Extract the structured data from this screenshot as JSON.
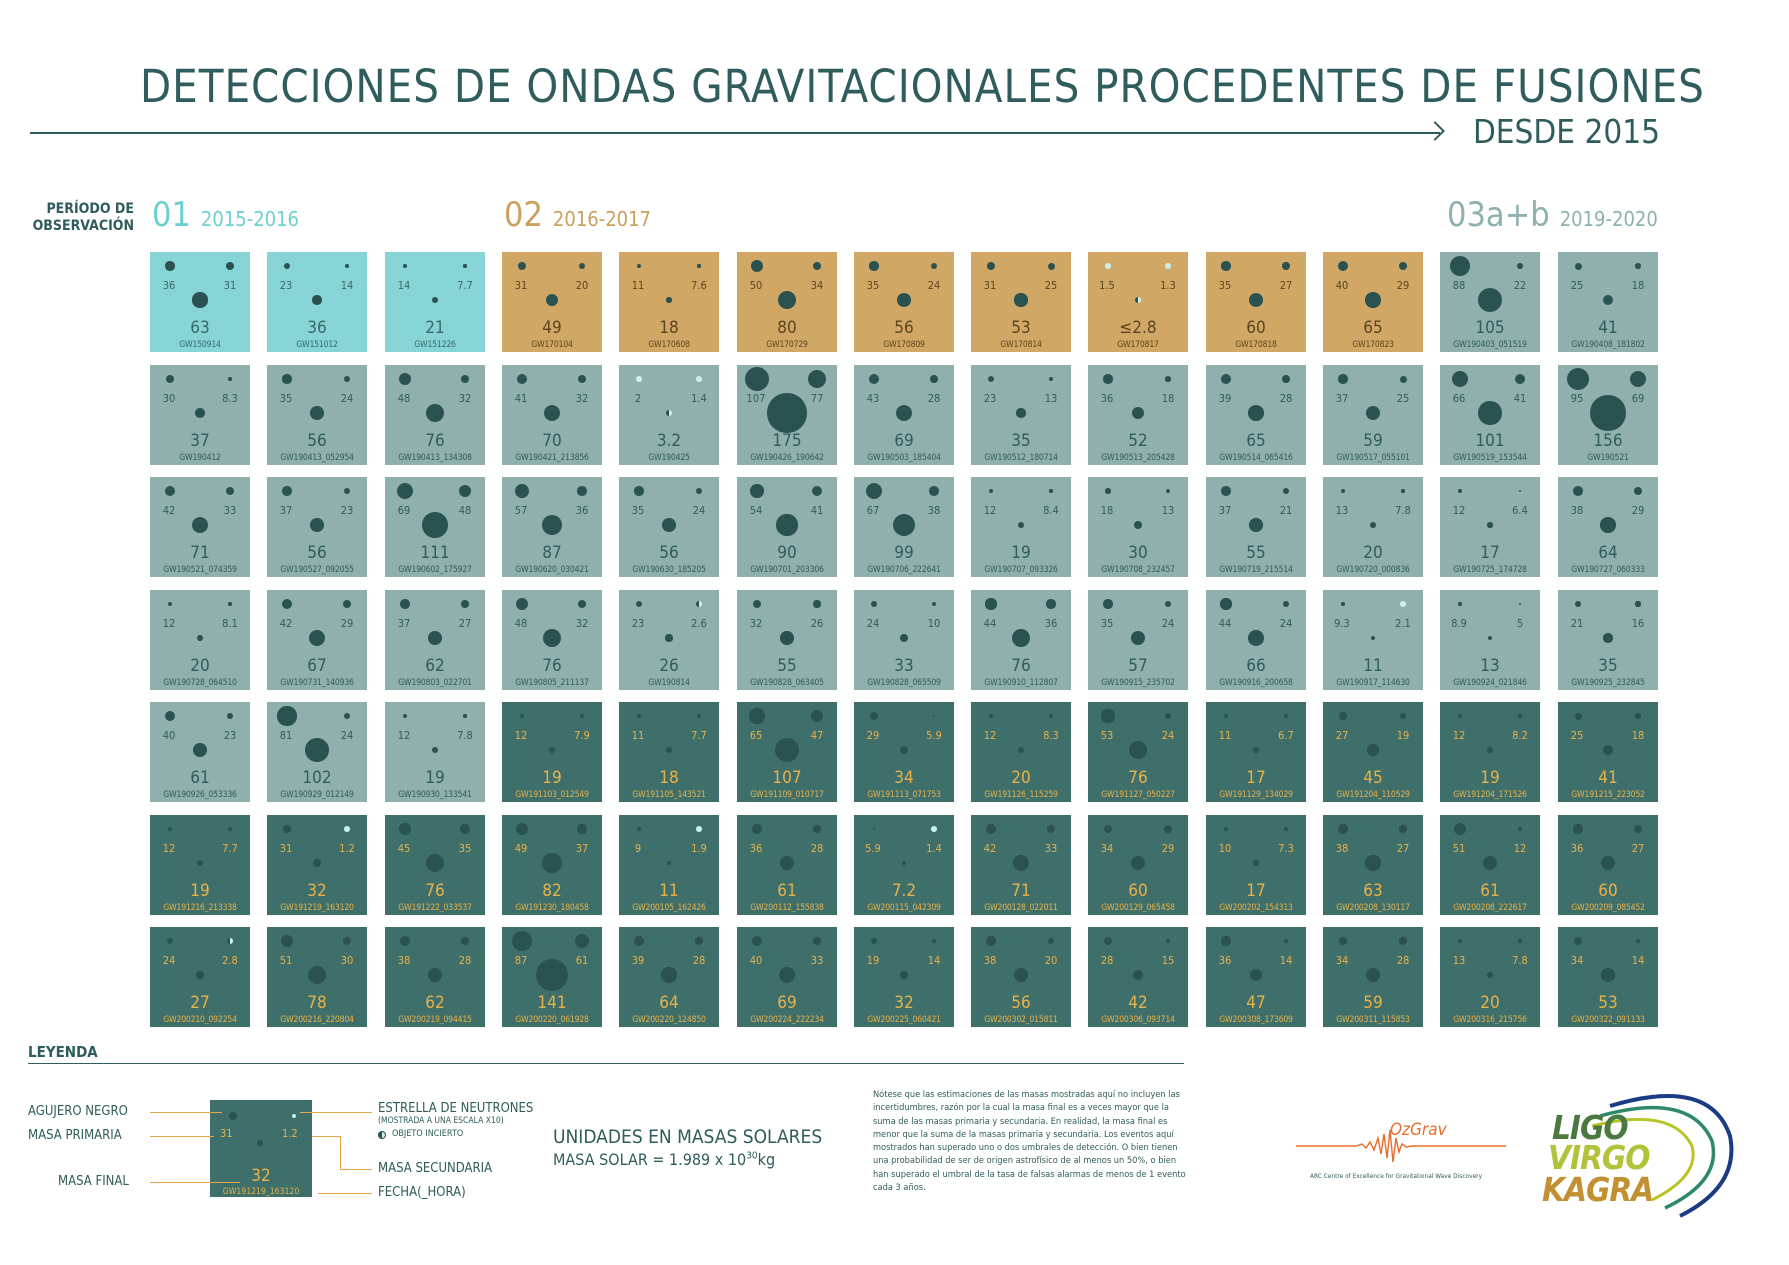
{
  "header": {
    "title": "DETECCIONES DE ONDAS GRAVITACIONALES PROCEDENTES DE FUSIONES",
    "subtitle": "DESDE 2015"
  },
  "period_label": "PERÍODO DE OBSERVACIÓN",
  "periods": [
    {
      "num": "01",
      "years": "2015-2016",
      "color": "#6dd0d0"
    },
    {
      "num": "02",
      "years": "2016-2017",
      "color": "#cba05f"
    },
    {
      "num": "03a+b",
      "years": "2019-2020",
      "color": "#8fb0b0"
    }
  ],
  "colors": {
    "o1_tile": "#86d4d5",
    "o2_tile": "#d0a765",
    "o3a_tile": "#8fb0ad",
    "o3b_tile": "#3f6f6b",
    "black_hole": "#2a5250",
    "neutron_star": "#c8f0ee",
    "o3b_text": "#e8b24a"
  },
  "events": [
    {
      "name": "GW150914",
      "m1": "36",
      "m2": "31",
      "mf": "63",
      "t1": "bh",
      "t2": "bh",
      "group": "o1"
    },
    {
      "name": "GW151012",
      "m1": "23",
      "m2": "14",
      "mf": "36",
      "t1": "bh",
      "t2": "bh",
      "group": "o1"
    },
    {
      "name": "GW151226",
      "m1": "14",
      "m2": "7.7",
      "mf": "21",
      "t1": "bh",
      "t2": "bh",
      "group": "o1"
    },
    {
      "name": "GW170104",
      "m1": "31",
      "m2": "20",
      "mf": "49",
      "t1": "bh",
      "t2": "bh",
      "group": "o2"
    },
    {
      "name": "GW170608",
      "m1": "11",
      "m2": "7.6",
      "mf": "18",
      "t1": "bh",
      "t2": "bh",
      "group": "o2"
    },
    {
      "name": "GW170729",
      "m1": "50",
      "m2": "34",
      "mf": "80",
      "t1": "bh",
      "t2": "bh",
      "group": "o2"
    },
    {
      "name": "GW170809",
      "m1": "35",
      "m2": "24",
      "mf": "56",
      "t1": "bh",
      "t2": "bh",
      "group": "o2"
    },
    {
      "name": "GW170814",
      "m1": "31",
      "m2": "25",
      "mf": "53",
      "t1": "bh",
      "t2": "bh",
      "group": "o2"
    },
    {
      "name": "GW170817",
      "m1": "1.5",
      "m2": "1.3",
      "mf": "≤2.8",
      "t1": "ns",
      "t2": "ns",
      "tf": "un",
      "group": "o2"
    },
    {
      "name": "GW170818",
      "m1": "35",
      "m2": "27",
      "mf": "60",
      "t1": "bh",
      "t2": "bh",
      "group": "o2"
    },
    {
      "name": "GW170823",
      "m1": "40",
      "m2": "29",
      "mf": "65",
      "t1": "bh",
      "t2": "bh",
      "group": "o2"
    },
    {
      "name": "GW190403_051519",
      "m1": "88",
      "m2": "22",
      "mf": "105",
      "t1": "bh",
      "t2": "bh",
      "group": "o3a"
    },
    {
      "name": "GW190408_181802",
      "m1": "25",
      "m2": "18",
      "mf": "41",
      "t1": "bh",
      "t2": "bh",
      "group": "o3a"
    },
    {
      "name": "GW190412",
      "m1": "30",
      "m2": "8.3",
      "mf": "37",
      "t1": "bh",
      "t2": "bh",
      "group": "o3a"
    },
    {
      "name": "GW190413_052954",
      "m1": "35",
      "m2": "24",
      "mf": "56",
      "t1": "bh",
      "t2": "bh",
      "group": "o3a"
    },
    {
      "name": "GW190413_134308",
      "m1": "48",
      "m2": "32",
      "mf": "76",
      "t1": "bh",
      "t2": "bh",
      "group": "o3a"
    },
    {
      "name": "GW190421_213856",
      "m1": "41",
      "m2": "32",
      "mf": "70",
      "t1": "bh",
      "t2": "bh",
      "group": "o3a"
    },
    {
      "name": "GW190425",
      "m1": "2",
      "m2": "1.4",
      "mf": "3.2",
      "t1": "ns",
      "t2": "ns",
      "tf": "un",
      "group": "o3a"
    },
    {
      "name": "GW190426_190642",
      "m1": "107",
      "m2": "77",
      "mf": "175",
      "t1": "bh",
      "t2": "bh",
      "group": "o3a"
    },
    {
      "name": "GW190503_185404",
      "m1": "43",
      "m2": "28",
      "mf": "69",
      "t1": "bh",
      "t2": "bh",
      "group": "o3a"
    },
    {
      "name": "GW190512_180714",
      "m1": "23",
      "m2": "13",
      "mf": "35",
      "t1": "bh",
      "t2": "bh",
      "group": "o3a"
    },
    {
      "name": "GW190513_205428",
      "m1": "36",
      "m2": "18",
      "mf": "52",
      "t1": "bh",
      "t2": "bh",
      "group": "o3a"
    },
    {
      "name": "GW190514_065416",
      "m1": "39",
      "m2": "28",
      "mf": "65",
      "t1": "bh",
      "t2": "bh",
      "group": "o3a"
    },
    {
      "name": "GW190517_055101",
      "m1": "37",
      "m2": "25",
      "mf": "59",
      "t1": "bh",
      "t2": "bh",
      "group": "o3a"
    },
    {
      "name": "GW190519_153544",
      "m1": "66",
      "m2": "41",
      "mf": "101",
      "t1": "bh",
      "t2": "bh",
      "group": "o3a"
    },
    {
      "name": "GW190521",
      "m1": "95",
      "m2": "69",
      "mf": "156",
      "t1": "bh",
      "t2": "bh",
      "group": "o3a"
    },
    {
      "name": "GW190521_074359",
      "m1": "42",
      "m2": "33",
      "mf": "71",
      "t1": "bh",
      "t2": "bh",
      "group": "o3a"
    },
    {
      "name": "GW190527_092055",
      "m1": "37",
      "m2": "23",
      "mf": "56",
      "t1": "bh",
      "t2": "bh",
      "group": "o3a"
    },
    {
      "name": "GW190602_175927",
      "m1": "69",
      "m2": "48",
      "mf": "111",
      "t1": "bh",
      "t2": "bh",
      "group": "o3a"
    },
    {
      "name": "GW190620_030421",
      "m1": "57",
      "m2": "36",
      "mf": "87",
      "t1": "bh",
      "t2": "bh",
      "group": "o3a"
    },
    {
      "name": "GW190630_185205",
      "m1": "35",
      "m2": "24",
      "mf": "56",
      "t1": "bh",
      "t2": "bh",
      "group": "o3a"
    },
    {
      "name": "GW190701_203306",
      "m1": "54",
      "m2": "41",
      "mf": "90",
      "t1": "bh",
      "t2": "bh",
      "group": "o3a"
    },
    {
      "name": "GW190706_222641",
      "m1": "67",
      "m2": "38",
      "mf": "99",
      "t1": "bh",
      "t2": "bh",
      "group": "o3a"
    },
    {
      "name": "GW190707_093326",
      "m1": "12",
      "m2": "8.4",
      "mf": "19",
      "t1": "bh",
      "t2": "bh",
      "group": "o3a"
    },
    {
      "name": "GW190708_232457",
      "m1": "18",
      "m2": "13",
      "mf": "30",
      "t1": "bh",
      "t2": "bh",
      "group": "o3a"
    },
    {
      "name": "GW190719_215514",
      "m1": "37",
      "m2": "21",
      "mf": "55",
      "t1": "bh",
      "t2": "bh",
      "group": "o3a"
    },
    {
      "name": "GW190720_000836",
      "m1": "13",
      "m2": "7.8",
      "mf": "20",
      "t1": "bh",
      "t2": "bh",
      "group": "o3a"
    },
    {
      "name": "GW190725_174728",
      "m1": "12",
      "m2": "6.4",
      "mf": "17",
      "t1": "bh",
      "t2": "bh",
      "group": "o3a"
    },
    {
      "name": "GW190727_060333",
      "m1": "38",
      "m2": "29",
      "mf": "64",
      "t1": "bh",
      "t2": "bh",
      "group": "o3a"
    },
    {
      "name": "GW190728_064510",
      "m1": "12",
      "m2": "8.1",
      "mf": "20",
      "t1": "bh",
      "t2": "bh",
      "group": "o3a"
    },
    {
      "name": "GW190731_140936",
      "m1": "42",
      "m2": "29",
      "mf": "67",
      "t1": "bh",
      "t2": "bh",
      "group": "o3a"
    },
    {
      "name": "GW190803_022701",
      "m1": "37",
      "m2": "27",
      "mf": "62",
      "t1": "bh",
      "t2": "bh",
      "group": "o3a"
    },
    {
      "name": "GW190805_211137",
      "m1": "48",
      "m2": "32",
      "mf": "76",
      "t1": "bh",
      "t2": "bh",
      "group": "o3a"
    },
    {
      "name": "GW190814",
      "m1": "23",
      "m2": "2.6",
      "mf": "26",
      "t1": "bh",
      "t2": "un",
      "group": "o3a"
    },
    {
      "name": "GW190828_063405",
      "m1": "32",
      "m2": "26",
      "mf": "55",
      "t1": "bh",
      "t2": "bh",
      "group": "o3a"
    },
    {
      "name": "GW190828_065509",
      "m1": "24",
      "m2": "10",
      "mf": "33",
      "t1": "bh",
      "t2": "bh",
      "group": "o3a"
    },
    {
      "name": "GW190910_112807",
      "m1": "44",
      "m2": "36",
      "mf": "76",
      "t1": "bh",
      "t2": "bh",
      "group": "o3a"
    },
    {
      "name": "GW190915_235702",
      "m1": "35",
      "m2": "24",
      "mf": "57",
      "t1": "bh",
      "t2": "bh",
      "group": "o3a"
    },
    {
      "name": "GW190916_200658",
      "m1": "44",
      "m2": "24",
      "mf": "66",
      "t1": "bh",
      "t2": "bh",
      "group": "o3a"
    },
    {
      "name": "GW190917_114630",
      "m1": "9.3",
      "m2": "2.1",
      "mf": "11",
      "t1": "bh",
      "t2": "ns",
      "group": "o3a"
    },
    {
      "name": "GW190924_021846",
      "m1": "8.9",
      "m2": "5",
      "mf": "13",
      "t1": "bh",
      "t2": "bh",
      "group": "o3a"
    },
    {
      "name": "GW190925_232845",
      "m1": "21",
      "m2": "16",
      "mf": "35",
      "t1": "bh",
      "t2": "bh",
      "group": "o3a"
    },
    {
      "name": "GW190926_053336",
      "m1": "40",
      "m2": "23",
      "mf": "61",
      "t1": "bh",
      "t2": "bh",
      "group": "o3a"
    },
    {
      "name": "GW190929_012149",
      "m1": "81",
      "m2": "24",
      "mf": "102",
      "t1": "bh",
      "t2": "bh",
      "group": "o3a"
    },
    {
      "name": "GW190930_133541",
      "m1": "12",
      "m2": "7.8",
      "mf": "19",
      "t1": "bh",
      "t2": "bh",
      "group": "o3a"
    },
    {
      "name": "GW191103_012549",
      "m1": "12",
      "m2": "7.9",
      "mf": "19",
      "t1": "bh",
      "t2": "bh",
      "group": "o3b"
    },
    {
      "name": "GW191105_143521",
      "m1": "11",
      "m2": "7.7",
      "mf": "18",
      "t1": "bh",
      "t2": "bh",
      "group": "o3b"
    },
    {
      "name": "GW191109_010717",
      "m1": "65",
      "m2": "47",
      "mf": "107",
      "t1": "bh",
      "t2": "bh",
      "group": "o3b"
    },
    {
      "name": "GW191113_071753",
      "m1": "29",
      "m2": "5.9",
      "mf": "34",
      "t1": "bh",
      "t2": "bh",
      "group": "o3b"
    },
    {
      "name": "GW191126_115259",
      "m1": "12",
      "m2": "8.3",
      "mf": "20",
      "t1": "bh",
      "t2": "bh",
      "group": "o3b"
    },
    {
      "name": "GW191127_050227",
      "m1": "53",
      "m2": "24",
      "mf": "76",
      "t1": "bh",
      "t2": "bh",
      "group": "o3b"
    },
    {
      "name": "GW191129_134029",
      "m1": "11",
      "m2": "6.7",
      "mf": "17",
      "t1": "bh",
      "t2": "bh",
      "group": "o3b"
    },
    {
      "name": "GW191204_110529",
      "m1": "27",
      "m2": "19",
      "mf": "45",
      "t1": "bh",
      "t2": "bh",
      "group": "o3b"
    },
    {
      "name": "GW191204_171526",
      "m1": "12",
      "m2": "8.2",
      "mf": "19",
      "t1": "bh",
      "t2": "bh",
      "group": "o3b"
    },
    {
      "name": "GW191215_223052",
      "m1": "25",
      "m2": "18",
      "mf": "41",
      "t1": "bh",
      "t2": "bh",
      "group": "o3b"
    },
    {
      "name": "GW191216_213338",
      "m1": "12",
      "m2": "7.7",
      "mf": "19",
      "t1": "bh",
      "t2": "bh",
      "group": "o3b"
    },
    {
      "name": "GW191219_163120",
      "m1": "31",
      "m2": "1.2",
      "mf": "32",
      "t1": "bh",
      "t2": "ns",
      "group": "o3b"
    },
    {
      "name": "GW191222_033537",
      "m1": "45",
      "m2": "35",
      "mf": "76",
      "t1": "bh",
      "t2": "bh",
      "group": "o3b"
    },
    {
      "name": "GW191230_180458",
      "m1": "49",
      "m2": "37",
      "mf": "82",
      "t1": "bh",
      "t2": "bh",
      "group": "o3b"
    },
    {
      "name": "GW200105_162426",
      "m1": "9",
      "m2": "1.9",
      "mf": "11",
      "t1": "bh",
      "t2": "ns",
      "group": "o3b"
    },
    {
      "name": "GW200112_155838",
      "m1": "36",
      "m2": "28",
      "mf": "61",
      "t1": "bh",
      "t2": "bh",
      "group": "o3b"
    },
    {
      "name": "GW200115_042309",
      "m1": "5.9",
      "m2": "1.4",
      "mf": "7.2",
      "t1": "bh",
      "t2": "ns",
      "group": "o3b"
    },
    {
      "name": "GW200128_022011",
      "m1": "42",
      "m2": "33",
      "mf": "71",
      "t1": "bh",
      "t2": "bh",
      "group": "o3b"
    },
    {
      "name": "GW200129_065458",
      "m1": "34",
      "m2": "29",
      "mf": "60",
      "t1": "bh",
      "t2": "bh",
      "group": "o3b"
    },
    {
      "name": "GW200202_154313",
      "m1": "10",
      "m2": "7.3",
      "mf": "17",
      "t1": "bh",
      "t2": "bh",
      "group": "o3b"
    },
    {
      "name": "GW200208_130117",
      "m1": "38",
      "m2": "27",
      "mf": "63",
      "t1": "bh",
      "t2": "bh",
      "group": "o3b"
    },
    {
      "name": "GW200208_222617",
      "m1": "51",
      "m2": "12",
      "mf": "61",
      "t1": "bh",
      "t2": "bh",
      "group": "o3b"
    },
    {
      "name": "GW200209_085452",
      "m1": "36",
      "m2": "27",
      "mf": "60",
      "t1": "bh",
      "t2": "bh",
      "group": "o3b"
    },
    {
      "name": "GW200210_092254",
      "m1": "24",
      "m2": "2.8",
      "mf": "27",
      "t1": "bh",
      "t2": "un",
      "group": "o3b"
    },
    {
      "name": "GW200216_220804",
      "m1": "51",
      "m2": "30",
      "mf": "78",
      "t1": "bh",
      "t2": "bh",
      "group": "o3b"
    },
    {
      "name": "GW200219_094415",
      "m1": "38",
      "m2": "28",
      "mf": "62",
      "t1": "bh",
      "t2": "bh",
      "group": "o3b"
    },
    {
      "name": "GW200220_061928",
      "m1": "87",
      "m2": "61",
      "mf": "141",
      "t1": "bh",
      "t2": "bh",
      "group": "o3b"
    },
    {
      "name": "GW200220_124850",
      "m1": "39",
      "m2": "28",
      "mf": "64",
      "t1": "bh",
      "t2": "bh",
      "group": "o3b"
    },
    {
      "name": "GW200224_222234",
      "m1": "40",
      "m2": "33",
      "mf": "69",
      "t1": "bh",
      "t2": "bh",
      "group": "o3b"
    },
    {
      "name": "GW200225_060421",
      "m1": "19",
      "m2": "14",
      "mf": "32",
      "t1": "bh",
      "t2": "bh",
      "group": "o3b"
    },
    {
      "name": "GW200302_015811",
      "m1": "38",
      "m2": "20",
      "mf": "56",
      "t1": "bh",
      "t2": "bh",
      "group": "o3b"
    },
    {
      "name": "GW200306_093714",
      "m1": "28",
      "m2": "15",
      "mf": "42",
      "t1": "bh",
      "t2": "bh",
      "group": "o3b"
    },
    {
      "name": "GW200308_173609",
      "m1": "36",
      "m2": "14",
      "mf": "47",
      "t1": "bh",
      "t2": "bh",
      "group": "o3b"
    },
    {
      "name": "GW200311_115853",
      "m1": "34",
      "m2": "28",
      "mf": "59",
      "t1": "bh",
      "t2": "bh",
      "group": "o3b"
    },
    {
      "name": "GW200316_215756",
      "m1": "13",
      "m2": "7.8",
      "mf": "20",
      "t1": "bh",
      "t2": "bh",
      "group": "o3b"
    },
    {
      "name": "GW200322_091133",
      "m1": "34",
      "m2": "14",
      "mf": "53",
      "t1": "bh",
      "t2": "bh",
      "group": "o3b"
    }
  ],
  "legend": {
    "title": "LEYENDA",
    "black_hole": "AGUJERO NEGRO",
    "primary_mass": "MASA PRIMARIA",
    "final_mass": "MASA FINAL",
    "neutron_star": "ESTRELLA DE NEUTRONES",
    "neutron_star_note": "(MOSTRADA A UNA ESCALA X10)",
    "uncertain": "OBJETO INCIERTO",
    "secondary_mass": "MASA SECUNDARIA",
    "date_time": "FECHA(_HORA)",
    "example": {
      "m1": "31",
      "m2": "1.2",
      "mf": "32",
      "name": "GW191219_163120"
    }
  },
  "units": {
    "title": "UNIDADES EN MASAS SOLARES",
    "mass_prefix": "MASA SOLAR = 1.989 x 10",
    "mass_exp": "30",
    "mass_suffix": "kg"
  },
  "note": "Nótese que las estimaciones de las masas mostradas aquí no incluyen las incertidumbres, razón por la cual la masa final es a veces mayor que la suma de las masas primaria y secundaria. En realidad, la masa final es menor que la suma de la masas primaria y secundaria. Los eventos aquí mostrados han superado uno o dos umbrales de detección. O bien tienen una probabilidad de ser de origen astrofísico de al menos un 50%, o bien han superado el umbral de la tasa de falsas alarmas de menos de 1 evento cada 3 años.",
  "logos": {
    "ozgrav": "OzGrav",
    "ozgrav_sub": "ARC Centre of Excellence for Gravitational Wave Discovery",
    "lvk": [
      "LIGO",
      "VIRGO",
      "KAGRA"
    ]
  }
}
